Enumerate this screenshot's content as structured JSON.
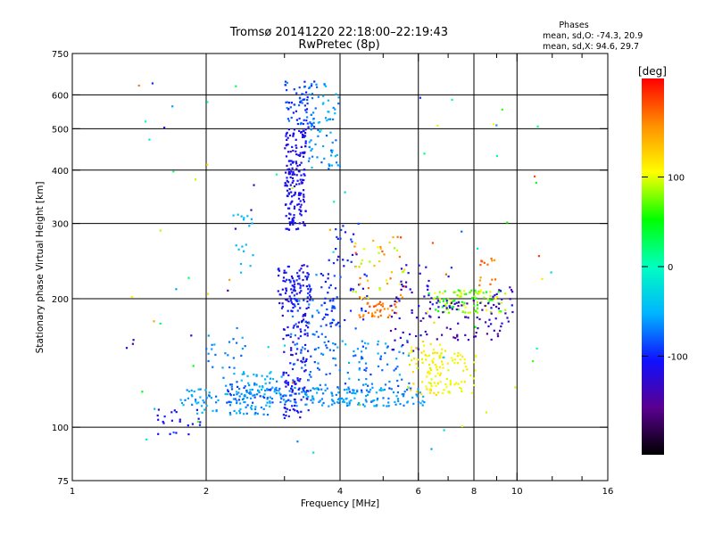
{
  "chart_data": {
    "type": "scatter",
    "title": "Tromsø 20141220 22:18:00–22:19:43",
    "subtitle": "RwPretec (8p)",
    "xlabel": "Frequency [MHz]",
    "ylabel": "Stationary phase Virtual Height [km]",
    "x_scale": "log",
    "y_scale": "log",
    "xlim": [
      1,
      16
    ],
    "ylim": [
      75,
      750
    ],
    "x_ticks": [
      1,
      2,
      4,
      6,
      8,
      10,
      16
    ],
    "x_minor_ticks": [
      3,
      5,
      7,
      9,
      12,
      14
    ],
    "y_ticks": [
      75,
      100,
      200,
      300,
      400,
      500,
      600,
      750
    ],
    "grid": true,
    "grid_x": [
      2,
      4,
      6,
      8,
      10
    ],
    "grid_y": [
      100,
      200,
      300,
      400,
      500,
      600
    ],
    "stats": {
      "heading": "Phases",
      "line_o": "mean, sd,O: -74.3, 20.9",
      "line_x": "mean, sd,X:  94.6, 29.7"
    },
    "colorbar": {
      "label": "[deg]",
      "ticks": [
        100,
        0,
        -100
      ],
      "range": [
        -210,
        210
      ],
      "colormap": [
        "#000000",
        "#5a0090",
        "#1010ff",
        "#00b4ff",
        "#00ffc0",
        "#00ff00",
        "#ffff00",
        "#ff9000",
        "#ff0000"
      ]
    },
    "clusters": [
      {
        "x": [
          1.55,
          1.95
        ],
        "y": [
          96,
          110
        ],
        "n": 22,
        "v": [
          -95,
          -120
        ]
      },
      {
        "x": [
          1.75,
          2.8
        ],
        "y": [
          107,
          123
        ],
        "n": 90,
        "v": [
          -40,
          -80
        ]
      },
      {
        "x": [
          2.2,
          3.4
        ],
        "y": [
          112,
          126
        ],
        "n": 80,
        "v": [
          -55,
          -95
        ]
      },
      {
        "x": [
          2.4,
          3.0
        ],
        "y": [
          118,
          135
        ],
        "n": 40,
        "v": [
          -40,
          -70
        ]
      },
      {
        "x": [
          2.9,
          3.45
        ],
        "y": [
          190,
          240
        ],
        "n": 100,
        "v": [
          -90,
          -125
        ]
      },
      {
        "x": [
          2.95,
          3.4
        ],
        "y": [
          105,
          190
        ],
        "n": 120,
        "v": [
          -95,
          -130
        ]
      },
      {
        "x": [
          3.0,
          3.35
        ],
        "y": [
          290,
          500
        ],
        "n": 180,
        "v": [
          -100,
          -125
        ]
      },
      {
        "x": [
          3.0,
          3.5
        ],
        "y": [
          500,
          650
        ],
        "n": 70,
        "v": [
          -60,
          -110
        ]
      },
      {
        "x": [
          3.4,
          4.0
        ],
        "y": [
          400,
          640
        ],
        "n": 70,
        "v": [
          -40,
          -80
        ]
      },
      {
        "x": [
          3.1,
          3.9
        ],
        "y": [
          125,
          200
        ],
        "n": 60,
        "v": [
          -60,
          -90
        ]
      },
      {
        "x": [
          2.3,
          2.55
        ],
        "y": [
          230,
          320
        ],
        "n": 18,
        "v": [
          -40,
          -55
        ]
      },
      {
        "x": [
          2.0,
          2.45
        ],
        "y": [
          130,
          175
        ],
        "n": 25,
        "v": [
          -50,
          -80
        ]
      },
      {
        "x": [
          3.3,
          6.2
        ],
        "y": [
          112,
          124
        ],
        "n": 130,
        "v": [
          -50,
          -75
        ]
      },
      {
        "x": [
          3.8,
          5.8
        ],
        "y": [
          120,
          160
        ],
        "n": 80,
        "v": [
          -40,
          -95
        ]
      },
      {
        "x": [
          3.6,
          4.6
        ],
        "y": [
          170,
          250
        ],
        "n": 60,
        "v": [
          -80,
          -110
        ]
      },
      {
        "x": [
          3.9,
          4.4
        ],
        "y": [
          230,
          300
        ],
        "n": 18,
        "v": [
          -90,
          -115
        ]
      },
      {
        "x": [
          4.4,
          5.4
        ],
        "y": [
          180,
          198
        ],
        "n": 35,
        "v": [
          150,
          185
        ]
      },
      {
        "x": [
          4.3,
          5.6
        ],
        "y": [
          200,
          280
        ],
        "n": 45,
        "v": [
          80,
          180
        ]
      },
      {
        "x": [
          5.2,
          6.4
        ],
        "y": [
          150,
          220
        ],
        "n": 45,
        "v": [
          -110,
          -150
        ]
      },
      {
        "x": [
          5.6,
          7.0
        ],
        "y": [
          118,
          160
        ],
        "n": 60,
        "v": [
          90,
          130
        ]
      },
      {
        "x": [
          6.3,
          8.1
        ],
        "y": [
          120,
          150
        ],
        "n": 70,
        "v": [
          95,
          120
        ]
      },
      {
        "x": [
          6.5,
          9.5
        ],
        "y": [
          185,
          210
        ],
        "n": 100,
        "v": [
          40,
          110
        ]
      },
      {
        "x": [
          6.5,
          9.2
        ],
        "y": [
          160,
          200
        ],
        "n": 50,
        "v": [
          -120,
          -160
        ]
      },
      {
        "x": [
          8.2,
          9.8
        ],
        "y": [
          170,
          215
        ],
        "n": 25,
        "v": [
          -110,
          -150
        ]
      },
      {
        "x": [
          8.2,
          9.0
        ],
        "y": [
          215,
          250
        ],
        "n": 15,
        "v": [
          150,
          180
        ]
      },
      {
        "x": [
          5.5,
          7.2
        ],
        "y": [
          190,
          240
        ],
        "n": 18,
        "v": [
          -90,
          -130
        ]
      },
      {
        "x": [
          1.3,
          12.5
        ],
        "y": [
          80,
          660
        ],
        "n": 90,
        "v": [
          -150,
          190
        ]
      }
    ]
  }
}
